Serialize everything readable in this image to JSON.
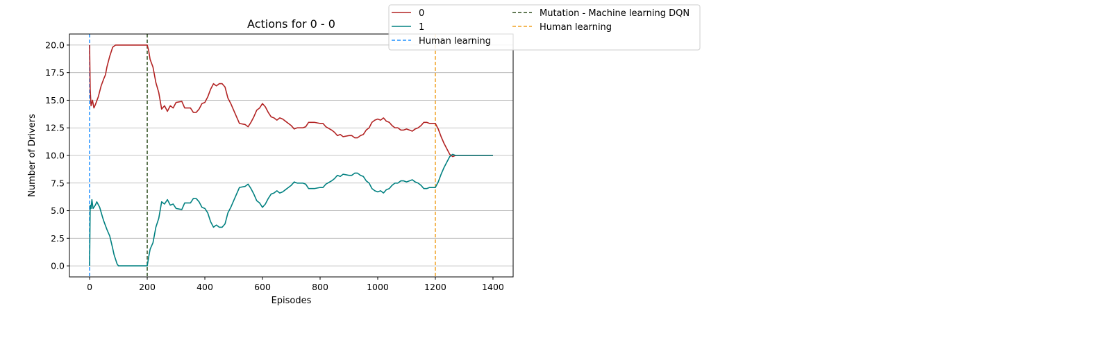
{
  "chart_data": {
    "type": "line",
    "title": "Actions for 0 - 0",
    "xlabel": "Episodes",
    "ylabel": "Number of Drivers",
    "xlim": [
      -70,
      1470
    ],
    "ylim": [
      -1.0,
      21.0
    ],
    "xticks": [
      0,
      200,
      400,
      600,
      800,
      1000,
      1200,
      1400
    ],
    "yticks": [
      0.0,
      2.5,
      5.0,
      7.5,
      10.0,
      12.5,
      15.0,
      17.5,
      20.0
    ],
    "ytick_labels": [
      "0.0",
      "2.5",
      "5.0",
      "7.5",
      "10.0",
      "12.5",
      "15.0",
      "17.5",
      "20.0"
    ],
    "grid": "horizontal",
    "legend_position": "top-right, outside",
    "series": [
      {
        "name": "0",
        "color": "#b22222",
        "style": "solid",
        "points": [
          [
            0,
            20
          ],
          [
            2,
            16
          ],
          [
            5,
            14.5
          ],
          [
            10,
            15
          ],
          [
            15,
            14.3
          ],
          [
            20,
            14.6
          ],
          [
            30,
            15.3
          ],
          [
            40,
            16.3
          ],
          [
            50,
            17
          ],
          [
            55,
            17.3
          ],
          [
            60,
            18
          ],
          [
            70,
            19
          ],
          [
            80,
            19.8
          ],
          [
            90,
            20
          ],
          [
            100,
            20
          ],
          [
            150,
            20
          ],
          [
            200,
            20
          ],
          [
            205,
            19.5
          ],
          [
            210,
            18.7
          ],
          [
            220,
            18
          ],
          [
            230,
            16.6
          ],
          [
            240,
            15.7
          ],
          [
            250,
            14.2
          ],
          [
            260,
            14.5
          ],
          [
            270,
            14
          ],
          [
            280,
            14.5
          ],
          [
            290,
            14.3
          ],
          [
            300,
            14.8
          ],
          [
            320,
            14.9
          ],
          [
            330,
            14.3
          ],
          [
            350,
            14.3
          ],
          [
            360,
            13.9
          ],
          [
            370,
            13.9
          ],
          [
            380,
            14.2
          ],
          [
            390,
            14.7
          ],
          [
            400,
            14.8
          ],
          [
            410,
            15.3
          ],
          [
            420,
            16
          ],
          [
            430,
            16.5
          ],
          [
            440,
            16.3
          ],
          [
            450,
            16.5
          ],
          [
            460,
            16.5
          ],
          [
            470,
            16.2
          ],
          [
            480,
            15.2
          ],
          [
            490,
            14.7
          ],
          [
            500,
            14.1
          ],
          [
            510,
            13.5
          ],
          [
            520,
            12.9
          ],
          [
            540,
            12.8
          ],
          [
            550,
            12.6
          ],
          [
            560,
            13
          ],
          [
            570,
            13.5
          ],
          [
            580,
            14.1
          ],
          [
            590,
            14.3
          ],
          [
            600,
            14.7
          ],
          [
            610,
            14.4
          ],
          [
            620,
            13.9
          ],
          [
            630,
            13.5
          ],
          [
            640,
            13.4
          ],
          [
            650,
            13.2
          ],
          [
            660,
            13.4
          ],
          [
            670,
            13.3
          ],
          [
            680,
            13.1
          ],
          [
            690,
            12.9
          ],
          [
            700,
            12.7
          ],
          [
            710,
            12.4
          ],
          [
            720,
            12.5
          ],
          [
            740,
            12.5
          ],
          [
            750,
            12.6
          ],
          [
            760,
            13
          ],
          [
            780,
            13
          ],
          [
            800,
            12.9
          ],
          [
            810,
            12.9
          ],
          [
            820,
            12.6
          ],
          [
            840,
            12.3
          ],
          [
            850,
            12.1
          ],
          [
            860,
            11.8
          ],
          [
            870,
            11.9
          ],
          [
            880,
            11.7
          ],
          [
            900,
            11.8
          ],
          [
            910,
            11.8
          ],
          [
            920,
            11.6
          ],
          [
            930,
            11.6
          ],
          [
            940,
            11.8
          ],
          [
            950,
            11.9
          ],
          [
            960,
            12.3
          ],
          [
            970,
            12.5
          ],
          [
            980,
            13
          ],
          [
            990,
            13.2
          ],
          [
            1000,
            13.3
          ],
          [
            1010,
            13.2
          ],
          [
            1020,
            13.4
          ],
          [
            1030,
            13.1
          ],
          [
            1040,
            13
          ],
          [
            1050,
            12.7
          ],
          [
            1060,
            12.5
          ],
          [
            1070,
            12.5
          ],
          [
            1080,
            12.3
          ],
          [
            1090,
            12.3
          ],
          [
            1100,
            12.4
          ],
          [
            1110,
            12.3
          ],
          [
            1120,
            12.2
          ],
          [
            1130,
            12.4
          ],
          [
            1140,
            12.5
          ],
          [
            1150,
            12.7
          ],
          [
            1160,
            13
          ],
          [
            1170,
            13
          ],
          [
            1180,
            12.9
          ],
          [
            1190,
            12.9
          ],
          [
            1200,
            12.9
          ],
          [
            1210,
            12.4
          ],
          [
            1220,
            11.7
          ],
          [
            1230,
            11.1
          ],
          [
            1240,
            10.6
          ],
          [
            1250,
            10.1
          ],
          [
            1260,
            9.9
          ],
          [
            1270,
            10
          ],
          [
            1300,
            10
          ],
          [
            1350,
            10
          ],
          [
            1400,
            10
          ]
        ]
      },
      {
        "name": "1",
        "color": "#008080",
        "style": "solid",
        "points": [
          [
            0,
            0
          ],
          [
            2,
            5.5
          ],
          [
            5,
            5.2
          ],
          [
            8,
            6
          ],
          [
            12,
            5.2
          ],
          [
            20,
            5.5
          ],
          [
            25,
            5.8
          ],
          [
            35,
            5.3
          ],
          [
            45,
            4.4
          ],
          [
            50,
            4
          ],
          [
            60,
            3.3
          ],
          [
            70,
            2.7
          ],
          [
            80,
            1.6
          ],
          [
            85,
            1
          ],
          [
            90,
            0.6
          ],
          [
            95,
            0.2
          ],
          [
            100,
            0
          ],
          [
            150,
            0
          ],
          [
            200,
            0
          ],
          [
            205,
            0.8
          ],
          [
            210,
            1.5
          ],
          [
            220,
            2.1
          ],
          [
            230,
            3.5
          ],
          [
            240,
            4.3
          ],
          [
            250,
            5.8
          ],
          [
            260,
            5.6
          ],
          [
            270,
            6
          ],
          [
            280,
            5.5
          ],
          [
            290,
            5.6
          ],
          [
            300,
            5.2
          ],
          [
            320,
            5.1
          ],
          [
            330,
            5.7
          ],
          [
            350,
            5.7
          ],
          [
            360,
            6.1
          ],
          [
            370,
            6.1
          ],
          [
            380,
            5.8
          ],
          [
            390,
            5.3
          ],
          [
            400,
            5.2
          ],
          [
            410,
            4.8
          ],
          [
            420,
            4
          ],
          [
            430,
            3.5
          ],
          [
            440,
            3.7
          ],
          [
            450,
            3.5
          ],
          [
            460,
            3.5
          ],
          [
            470,
            3.8
          ],
          [
            480,
            4.8
          ],
          [
            490,
            5.3
          ],
          [
            500,
            5.9
          ],
          [
            510,
            6.5
          ],
          [
            520,
            7.1
          ],
          [
            540,
            7.2
          ],
          [
            550,
            7.4
          ],
          [
            560,
            7
          ],
          [
            570,
            6.5
          ],
          [
            580,
            5.9
          ],
          [
            590,
            5.7
          ],
          [
            600,
            5.3
          ],
          [
            610,
            5.6
          ],
          [
            620,
            6.1
          ],
          [
            630,
            6.5
          ],
          [
            640,
            6.6
          ],
          [
            650,
            6.8
          ],
          [
            660,
            6.6
          ],
          [
            670,
            6.7
          ],
          [
            680,
            6.9
          ],
          [
            690,
            7.1
          ],
          [
            700,
            7.3
          ],
          [
            710,
            7.6
          ],
          [
            720,
            7.5
          ],
          [
            740,
            7.5
          ],
          [
            750,
            7.4
          ],
          [
            760,
            7
          ],
          [
            780,
            7
          ],
          [
            800,
            7.1
          ],
          [
            810,
            7.1
          ],
          [
            820,
            7.4
          ],
          [
            840,
            7.7
          ],
          [
            850,
            7.9
          ],
          [
            860,
            8.2
          ],
          [
            870,
            8.1
          ],
          [
            880,
            8.3
          ],
          [
            900,
            8.2
          ],
          [
            910,
            8.2
          ],
          [
            920,
            8.4
          ],
          [
            930,
            8.4
          ],
          [
            940,
            8.2
          ],
          [
            950,
            8.1
          ],
          [
            960,
            7.7
          ],
          [
            970,
            7.5
          ],
          [
            980,
            7
          ],
          [
            990,
            6.8
          ],
          [
            1000,
            6.7
          ],
          [
            1010,
            6.8
          ],
          [
            1020,
            6.6
          ],
          [
            1030,
            6.9
          ],
          [
            1040,
            7
          ],
          [
            1050,
            7.3
          ],
          [
            1060,
            7.5
          ],
          [
            1070,
            7.5
          ],
          [
            1080,
            7.7
          ],
          [
            1090,
            7.7
          ],
          [
            1100,
            7.6
          ],
          [
            1110,
            7.7
          ],
          [
            1120,
            7.8
          ],
          [
            1130,
            7.6
          ],
          [
            1140,
            7.5
          ],
          [
            1150,
            7.3
          ],
          [
            1160,
            7
          ],
          [
            1170,
            7
          ],
          [
            1180,
            7.1
          ],
          [
            1190,
            7.1
          ],
          [
            1200,
            7.1
          ],
          [
            1210,
            7.6
          ],
          [
            1220,
            8.3
          ],
          [
            1230,
            8.9
          ],
          [
            1240,
            9.4
          ],
          [
            1250,
            9.9
          ],
          [
            1260,
            10.1
          ],
          [
            1270,
            10
          ],
          [
            1300,
            10
          ],
          [
            1350,
            10
          ],
          [
            1400,
            10
          ]
        ]
      }
    ],
    "vlines": [
      {
        "name": "Human learning",
        "x": 0,
        "color": "#1e90ff",
        "style": "dashed"
      },
      {
        "name": "Mutation - Machine learning DQN",
        "x": 200,
        "color": "#2f4f1f",
        "style": "dashed"
      },
      {
        "name": "Human learning",
        "x": 1200,
        "color": "#f0a020",
        "style": "dashed"
      }
    ],
    "legend": [
      {
        "label": "0",
        "color": "#b22222",
        "style": "solid"
      },
      {
        "label": "1",
        "color": "#008080",
        "style": "solid"
      },
      {
        "label": "Human learning",
        "color": "#1e90ff",
        "style": "dashed"
      },
      {
        "label": "Mutation - Machine learning DQN",
        "color": "#2f4f1f",
        "style": "dashed"
      },
      {
        "label": "Human learning",
        "color": "#f0a020",
        "style": "dashed"
      }
    ]
  }
}
